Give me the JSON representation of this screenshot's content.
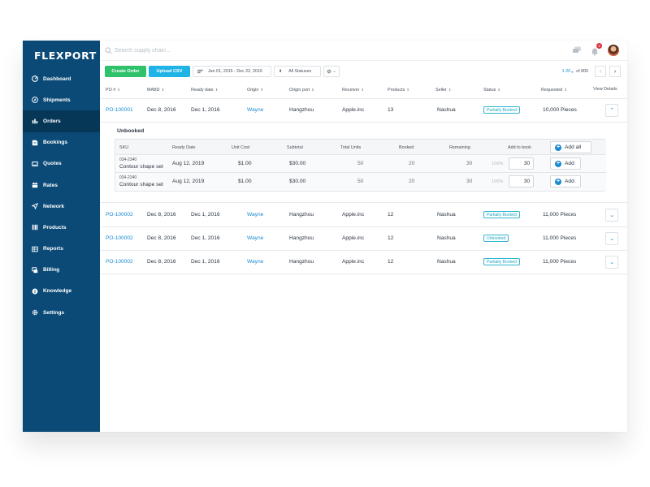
{
  "brand": "FLEXPORT",
  "sidebar": {
    "items": [
      {
        "label": "Dashboard",
        "icon": "dashboard-icon"
      },
      {
        "label": "Shipments",
        "icon": "shipments-icon"
      },
      {
        "label": "Orders",
        "icon": "orders-icon",
        "active": true
      },
      {
        "label": "Bookings",
        "icon": "bookings-icon"
      },
      {
        "label": "Quotes",
        "icon": "quotes-icon"
      },
      {
        "label": "Rates",
        "icon": "rates-icon"
      },
      {
        "label": "Network",
        "icon": "network-icon"
      },
      {
        "label": "Products",
        "icon": "products-icon"
      },
      {
        "label": "Reports",
        "icon": "reports-icon"
      },
      {
        "label": "Billing",
        "icon": "billing-icon"
      },
      {
        "label": "Knowledge",
        "icon": "knowledge-icon"
      },
      {
        "label": "Settings",
        "icon": "settings-icon"
      }
    ]
  },
  "search": {
    "placeholder": "Search supply chain..."
  },
  "notifications": {
    "count": "2"
  },
  "toolbar": {
    "create_label": "Create Order",
    "upload_label": "Upload CSV",
    "date_range": "Jan 01, 2015 - Dec 22, 2016",
    "status_filter": "All Statuses"
  },
  "pager": {
    "range": "1-20",
    "total": "of 800"
  },
  "table": {
    "headers": {
      "po": "PO #",
      "mabd": "MABD",
      "ready": "Ready date",
      "origin": "Origin",
      "port": "Origin port",
      "receiver": "Receiver",
      "products": "Products",
      "seller": "Seller",
      "status": "Status",
      "requested": "Requested",
      "view": "View Details"
    },
    "rows": [
      {
        "po": "PO-100001",
        "mabd": "Dec 8, 2016",
        "ready": "Dec 1, 2016",
        "origin": "Wayne",
        "port": "Hangzhou",
        "receiver": "Apple.inc",
        "products": "13",
        "seller": "Nashua",
        "status": "Partially Booked",
        "requested": "10,000 Pieces"
      },
      {
        "po": "PO-100002",
        "mabd": "Dec 8, 2016",
        "ready": "Dec 1, 2016",
        "origin": "Wayne",
        "port": "Hangzhou",
        "receiver": "Apple.inc",
        "products": "12",
        "seller": "Nashua",
        "status": "Partially Booked",
        "requested": "11,000 Pieces"
      },
      {
        "po": "PO-100002",
        "mabd": "Dec 8, 2016",
        "ready": "Dec 1, 2016",
        "origin": "Wayne",
        "port": "Hangzhou",
        "receiver": "Apple.inc",
        "products": "12",
        "seller": "Nashua",
        "status": "Unbooked",
        "requested": "11,000 Pieces"
      },
      {
        "po": "PO-100002",
        "mabd": "Dec 8, 2016",
        "ready": "Dec 1, 2016",
        "origin": "Wayne",
        "port": "Hangzhou",
        "receiver": "Apple.inc",
        "products": "12",
        "seller": "Nashua",
        "status": "Partially Booked",
        "requested": "11,000 Pieces"
      }
    ]
  },
  "detail": {
    "title": "Unbooked",
    "headers": {
      "sku": "SKU",
      "ready": "Ready Date",
      "unit_cost": "Unit Cost",
      "subtotal": "Subtotal",
      "total_units": "Total Units",
      "booked": "Booked",
      "remaining": "Remaining",
      "add_to_book": "Add to book"
    },
    "add_all_label": "Add all",
    "rows": [
      {
        "sku": "034-2340",
        "name": "Contour shape set",
        "ready": "Aug 12, 2019",
        "unit_cost": "$1.00",
        "subtotal": "$30.00",
        "total_units": "50",
        "booked": "20",
        "remaining": "30",
        "pct": "100%",
        "qty": "30",
        "add_label": "Add"
      },
      {
        "sku": "034-2340",
        "name": "Contour shape set",
        "ready": "Aug 12, 2019",
        "unit_cost": "$1.00",
        "subtotal": "$30.00",
        "total_units": "50",
        "booked": "20",
        "remaining": "30",
        "pct": "100%",
        "qty": "30",
        "add_label": "Add"
      }
    ]
  },
  "colors": {
    "sidebar": "#0b4a77",
    "sidebar_active": "#073757",
    "link": "#1a8ad0",
    "green": "#2fc26a",
    "blue": "#1fb3e6",
    "tag": "#2cb7cf"
  }
}
